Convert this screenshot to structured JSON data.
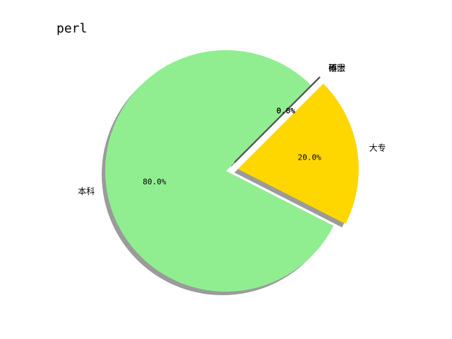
{
  "chart_data": {
    "type": "pie",
    "title": "perl",
    "start_angle_deg": 45,
    "shadow": true,
    "slices": [
      {
        "label": "本科",
        "value": 80.0,
        "pct_text": "80.0%",
        "color": "#90EE90",
        "explode": 0
      },
      {
        "label": "大专",
        "value": 20.0,
        "pct_text": "20.0%",
        "color": "#FFD700",
        "explode": 0.1
      },
      {
        "label": "硕士",
        "value": 0.0,
        "pct_text": "0.0%",
        "color": "#87CEFA",
        "explode": 0.1
      },
      {
        "label": "博士",
        "value": 0.0,
        "pct_text": "0.0%",
        "color": "#FF7F7F",
        "explode": 0.1
      },
      {
        "label": "不限",
        "value": 0.0,
        "pct_text": "0.0%",
        "color": "#DDA0DD",
        "explode": 0.1
      }
    ]
  }
}
